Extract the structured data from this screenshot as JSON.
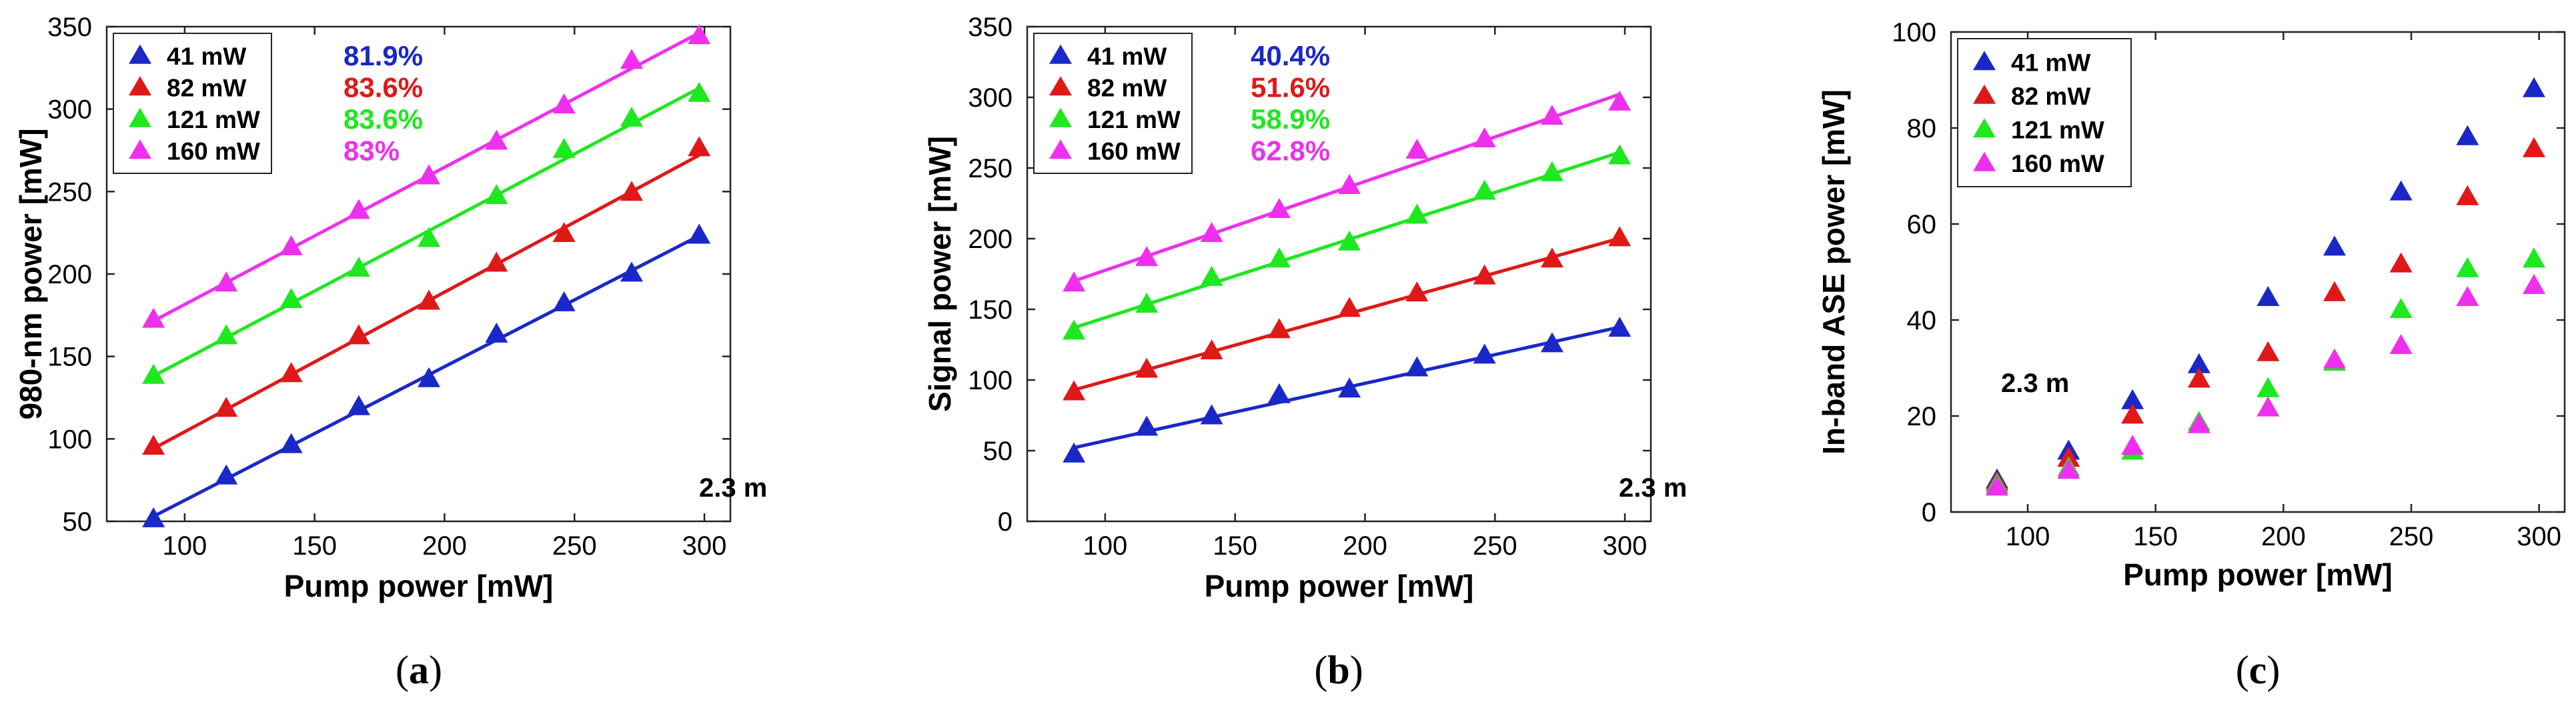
{
  "colors": {
    "41 mW": "#1a28c8",
    "82 mW": "#e01818",
    "121 mW": "#1ee81e",
    "160 mW": "#ee30ee"
  },
  "chart_data": [
    {
      "type": "scatter",
      "caption": "a",
      "xlabel": "Pump power [mW]",
      "ylabel": "980-nm power [mW]",
      "xlim": [
        70,
        310
      ],
      "ylim": [
        50,
        350
      ],
      "xticks": [
        100,
        150,
        200,
        250,
        300
      ],
      "yticks": [
        50,
        100,
        150,
        200,
        250,
        300,
        350
      ],
      "grid": false,
      "legend_position": "top-left",
      "annotation": "2.3 m",
      "x": [
        88,
        116,
        141,
        167,
        194,
        220,
        246,
        272,
        298
      ],
      "series": [
        {
          "name": "41 mW",
          "efficiency": "81.9%",
          "fit": true,
          "values": [
            51,
            77,
            96,
            119,
            136,
            163,
            182,
            200,
            223
          ]
        },
        {
          "name": "82 mW",
          "efficiency": "83.6%",
          "fit": true,
          "values": [
            95,
            118,
            139,
            162,
            183,
            206,
            224,
            249,
            276
          ]
        },
        {
          "name": "121 mW",
          "efficiency": "83.6%",
          "fit": true,
          "values": [
            138,
            162,
            184,
            203,
            221,
            247,
            275,
            294,
            309
          ]
        },
        {
          "name": "160 mW",
          "efficiency": "83%",
          "fit": true,
          "values": [
            172,
            194,
            216,
            238,
            259,
            280,
            302,
            329,
            344
          ]
        }
      ]
    },
    {
      "type": "scatter",
      "caption": "b",
      "xlabel": "Pump power [mW]",
      "ylabel": "Signal power [mW]",
      "xlim": [
        70,
        310
      ],
      "ylim": [
        0,
        350
      ],
      "xticks": [
        100,
        150,
        200,
        250,
        300
      ],
      "yticks": [
        0,
        50,
        100,
        150,
        200,
        250,
        300,
        350
      ],
      "grid": false,
      "legend_position": "top-left",
      "annotation": "2.3 m",
      "x": [
        88,
        116,
        141,
        167,
        194,
        220,
        246,
        272,
        298
      ],
      "series": [
        {
          "name": "41 mW",
          "efficiency": "40.4%",
          "fit": true,
          "values": [
            47,
            66,
            74,
            89,
            93,
            108,
            117,
            125,
            136
          ]
        },
        {
          "name": "82 mW",
          "efficiency": "51.6%",
          "fit": true,
          "values": [
            91,
            107,
            120,
            135,
            150,
            161,
            173,
            185,
            200
          ]
        },
        {
          "name": "121 mW",
          "efficiency": "58.9%",
          "fit": true,
          "values": [
            134,
            153,
            172,
            185,
            197,
            216,
            233,
            246,
            258
          ]
        },
        {
          "name": "160 mW",
          "efficiency": "62.8%",
          "fit": true,
          "values": [
            168,
            186,
            203,
            220,
            237,
            262,
            270,
            286,
            296
          ]
        }
      ]
    },
    {
      "type": "scatter",
      "caption": "c",
      "xlabel": "Pump power [mW]",
      "ylabel": "In-band ASE power [mW]",
      "xlim": [
        70,
        310
      ],
      "ylim": [
        0,
        100
      ],
      "xticks": [
        100,
        150,
        200,
        250,
        300
      ],
      "yticks": [
        0,
        20,
        40,
        60,
        80,
        100
      ],
      "grid": false,
      "legend_position": "top-left",
      "annotation": "2.3 m",
      "x": [
        88,
        116,
        141,
        167,
        194,
        220,
        246,
        272,
        298
      ],
      "series": [
        {
          "name": "41 mW",
          "fit": false,
          "values": [
            6.5,
            12.5,
            23,
            30.5,
            44.5,
            55,
            66.5,
            78,
            88
          ]
        },
        {
          "name": "82 mW",
          "fit": false,
          "values": [
            6,
            11,
            20,
            27.5,
            33,
            45.5,
            51.5,
            65.5,
            75.5
          ]
        },
        {
          "name": "121 mW",
          "fit": false,
          "values": [
            5.5,
            9,
            12.5,
            18.5,
            25.5,
            31,
            42,
            50.5,
            52.5
          ]
        },
        {
          "name": "160 mW",
          "fit": false,
          "values": [
            5,
            8.5,
            13.5,
            18,
            21.5,
            31.5,
            34.5,
            44.5,
            47
          ]
        }
      ]
    }
  ]
}
